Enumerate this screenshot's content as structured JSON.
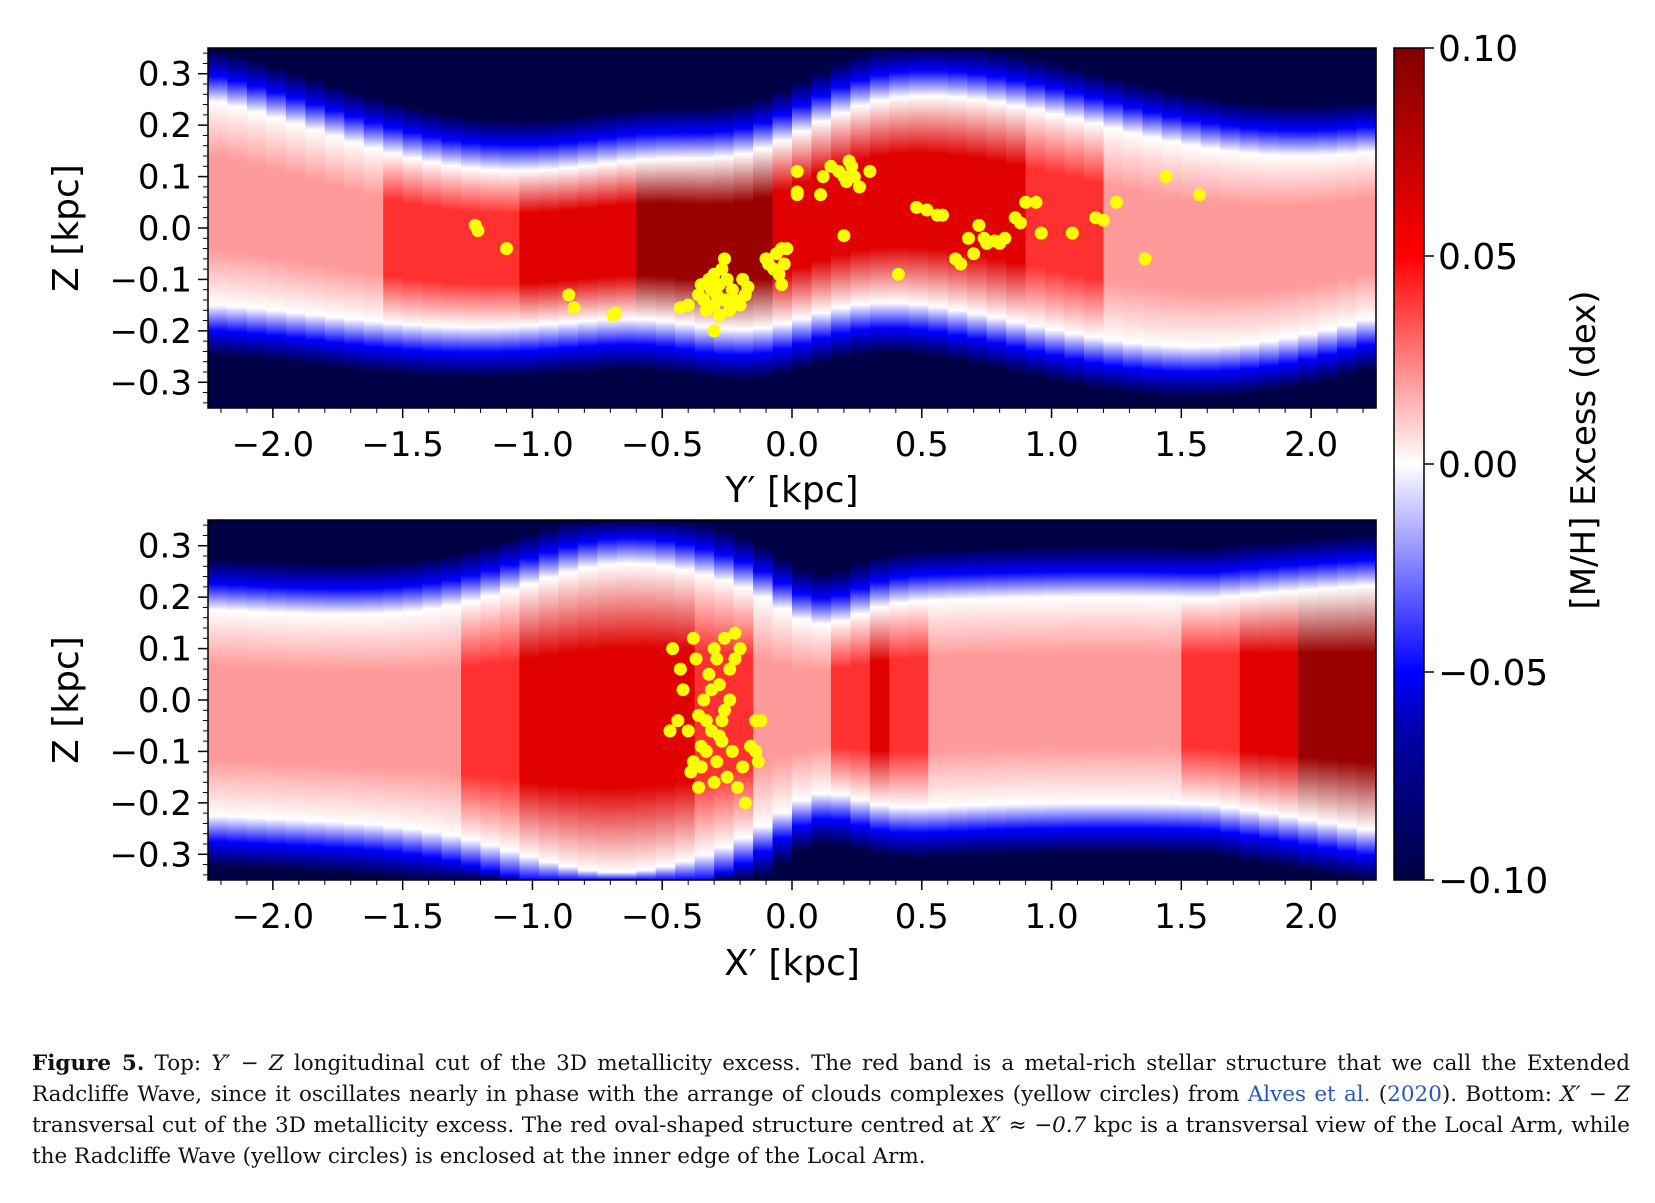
{
  "colormap": {
    "dark_blue": "#000044",
    "blue": "#0000ff",
    "white": "#ffffff",
    "red": "#ff0000",
    "dark_red": "#800000",
    "marker_color": "#ffff00"
  },
  "colorbar": {
    "label": "[M/H] Excess (dex)",
    "range": [
      -0.1,
      0.1
    ],
    "ticks": [
      "0.10",
      "0.05",
      "0.00",
      "−0.05",
      "−0.10"
    ]
  },
  "chart_data": [
    {
      "type": "heatmap",
      "panel": "top",
      "title": "",
      "xlabel": "Y′ [kpc]",
      "ylabel": "Z [kpc]",
      "xlim": [
        -2.25,
        2.25
      ],
      "ylim": [
        -0.35,
        0.35
      ],
      "xticks": [
        "−2.0",
        "−1.5",
        "−1.0",
        "−0.5",
        "0.0",
        "0.5",
        "1.0",
        "1.5",
        "2.0"
      ],
      "yticks": [
        "0.3",
        "0.2",
        "0.1",
        "0.0",
        "−0.1",
        "−0.2",
        "−0.3"
      ],
      "markers": [
        [
          -1.22,
          0.005
        ],
        [
          -1.21,
          -0.005
        ],
        [
          -1.1,
          -0.04
        ],
        [
          -0.86,
          -0.13
        ],
        [
          -0.84,
          -0.155
        ],
        [
          -0.68,
          -0.165
        ],
        [
          -0.69,
          -0.17
        ],
        [
          -0.43,
          -0.155
        ],
        [
          -0.4,
          -0.15
        ],
        [
          -0.36,
          -0.13
        ],
        [
          -0.35,
          -0.11
        ],
        [
          -0.34,
          -0.14
        ],
        [
          -0.33,
          -0.16
        ],
        [
          -0.32,
          -0.1
        ],
        [
          -0.31,
          -0.12
        ],
        [
          -0.3,
          -0.15
        ],
        [
          -0.3,
          -0.09
        ],
        [
          -0.29,
          -0.13
        ],
        [
          -0.28,
          -0.17
        ],
        [
          -0.28,
          -0.11
        ],
        [
          -0.27,
          -0.08
        ],
        [
          -0.26,
          -0.06
        ],
        [
          -0.26,
          -0.14
        ],
        [
          -0.25,
          -0.1
        ],
        [
          -0.24,
          -0.16
        ],
        [
          -0.23,
          -0.12
        ],
        [
          -0.22,
          -0.14
        ],
        [
          -0.2,
          -0.15
        ],
        [
          -0.19,
          -0.1
        ],
        [
          -0.18,
          -0.13
        ],
        [
          -0.17,
          -0.115
        ],
        [
          -0.3,
          -0.2
        ],
        [
          -0.1,
          -0.06
        ],
        [
          -0.09,
          -0.07
        ],
        [
          -0.07,
          -0.08
        ],
        [
          -0.06,
          -0.05
        ],
        [
          -0.05,
          -0.09
        ],
        [
          -0.04,
          -0.11
        ],
        [
          -0.03,
          -0.07
        ],
        [
          -0.04,
          -0.04
        ],
        [
          -0.02,
          -0.04
        ],
        [
          0.02,
          0.11
        ],
        [
          0.02,
          0.07
        ],
        [
          0.02,
          0.065
        ],
        [
          0.11,
          0.065
        ],
        [
          0.12,
          0.1
        ],
        [
          0.15,
          0.12
        ],
        [
          0.18,
          0.11
        ],
        [
          0.2,
          0.1
        ],
        [
          0.21,
          0.09
        ],
        [
          0.22,
          0.13
        ],
        [
          0.23,
          0.12
        ],
        [
          0.24,
          0.1
        ],
        [
          0.26,
          0.08
        ],
        [
          0.3,
          0.11
        ],
        [
          0.2,
          -0.015
        ],
        [
          0.41,
          -0.09
        ],
        [
          0.48,
          0.04
        ],
        [
          0.52,
          0.035
        ],
        [
          0.56,
          0.025
        ],
        [
          0.58,
          0.025
        ],
        [
          0.63,
          -0.06
        ],
        [
          0.65,
          -0.07
        ],
        [
          0.68,
          -0.02
        ],
        [
          0.7,
          -0.05
        ],
        [
          0.72,
          0.005
        ],
        [
          0.74,
          -0.02
        ],
        [
          0.75,
          -0.03
        ],
        [
          0.78,
          -0.025
        ],
        [
          0.8,
          -0.03
        ],
        [
          0.82,
          -0.02
        ],
        [
          0.86,
          0.02
        ],
        [
          0.88,
          0.01
        ],
        [
          0.9,
          0.05
        ],
        [
          0.94,
          0.05
        ],
        [
          0.96,
          -0.01
        ],
        [
          1.08,
          -0.01
        ],
        [
          1.17,
          0.02
        ],
        [
          1.2,
          0.015
        ],
        [
          1.25,
          0.05
        ],
        [
          1.36,
          -0.06
        ],
        [
          1.44,
          0.1
        ],
        [
          1.57,
          0.065
        ]
      ]
    },
    {
      "type": "heatmap",
      "panel": "bottom",
      "title": "",
      "xlabel": "X′ [kpc]",
      "ylabel": "Z [kpc]",
      "xlim": [
        -2.25,
        2.25
      ],
      "ylim": [
        -0.35,
        0.35
      ],
      "xticks": [
        "−2.0",
        "−1.5",
        "−1.0",
        "−0.5",
        "0.0",
        "0.5",
        "1.0",
        "1.5",
        "2.0"
      ],
      "yticks": [
        "0.3",
        "0.2",
        "0.1",
        "0.0",
        "−0.1",
        "−0.2",
        "−0.3"
      ],
      "markers": [
        [
          -0.46,
          0.1
        ],
        [
          -0.47,
          -0.06
        ],
        [
          -0.44,
          -0.04
        ],
        [
          -0.43,
          0.06
        ],
        [
          -0.42,
          0.02
        ],
        [
          -0.4,
          -0.06
        ],
        [
          -0.38,
          0.12
        ],
        [
          -0.37,
          0.08
        ],
        [
          -0.36,
          -0.17
        ],
        [
          -0.35,
          -0.13
        ],
        [
          -0.34,
          0.0
        ],
        [
          -0.33,
          -0.1
        ],
        [
          -0.32,
          0.05
        ],
        [
          -0.31,
          -0.06
        ],
        [
          -0.3,
          0.1
        ],
        [
          -0.29,
          -0.12
        ],
        [
          -0.28,
          0.03
        ],
        [
          -0.27,
          -0.08
        ],
        [
          -0.26,
          0.12
        ],
        [
          -0.25,
          -0.15
        ],
        [
          -0.24,
          0.06
        ],
        [
          -0.23,
          -0.1
        ],
        [
          -0.22,
          0.13
        ],
        [
          -0.21,
          -0.17
        ],
        [
          -0.2,
          0.1
        ],
        [
          -0.19,
          -0.13
        ],
        [
          -0.18,
          -0.2
        ],
        [
          -0.3,
          -0.16
        ],
        [
          -0.27,
          -0.04
        ],
        [
          -0.28,
          -0.07
        ],
        [
          -0.33,
          -0.04
        ],
        [
          -0.36,
          -0.03
        ],
        [
          -0.24,
          0.0
        ],
        [
          -0.26,
          -0.02
        ],
        [
          -0.14,
          -0.1
        ],
        [
          -0.13,
          -0.12
        ],
        [
          -0.12,
          -0.04
        ],
        [
          -0.14,
          -0.04
        ],
        [
          -0.16,
          -0.09
        ],
        [
          -0.22,
          0.08
        ],
        [
          -0.29,
          0.08
        ],
        [
          -0.31,
          0.02
        ],
        [
          -0.35,
          -0.09
        ],
        [
          -0.38,
          -0.12
        ],
        [
          -0.39,
          -0.14
        ]
      ]
    }
  ],
  "caption": {
    "label": "Figure 5.",
    "part1": " Top: ",
    "math1": "Y′ − Z",
    "part2": " longitudinal cut of the 3D metallicity excess. The red band is a metal-rich stellar structure that we call the Extended Radcliffe Wave, since it oscillates nearly in phase with the arrange of clouds complexes (yellow circles) from ",
    "cite_authors": "Alves et al.",
    "cite_open": " (",
    "cite_year": "2020",
    "cite_close": ").",
    "part3": " Bottom: ",
    "math2": "X′ − Z",
    "part4": " transversal cut of the 3D metallicity excess. The red oval-shaped structure centred at ",
    "math3": "X′ ≈ −0.7",
    "part5": " kpc is a transversal view of the Local Arm, while the Radcliffe Wave (yellow circles) is enclosed at the inner edge of the Local Arm."
  }
}
